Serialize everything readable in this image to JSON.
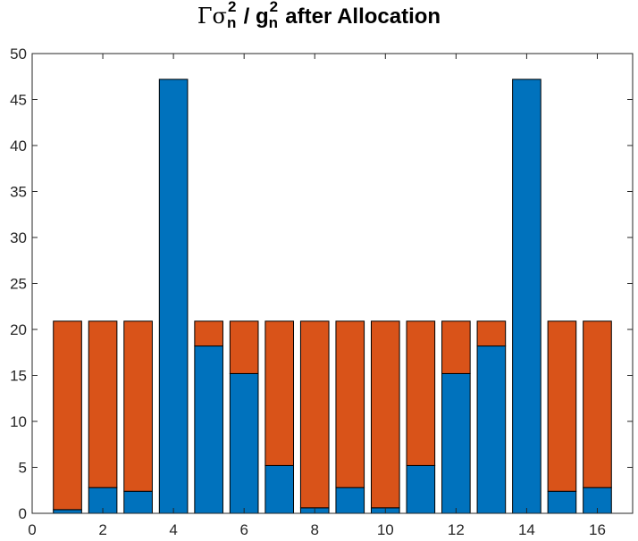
{
  "chart_data": {
    "type": "bar",
    "stacked": true,
    "title": {
      "prefix": "Γσ",
      "sup": "2",
      "sub": "n",
      "mid": " / g",
      "sup2": "2",
      "sub2": "n",
      "suffix": " after Allocation"
    },
    "categories": [
      1,
      2,
      3,
      4,
      5,
      6,
      7,
      8,
      9,
      10,
      11,
      12,
      13,
      14,
      15,
      16
    ],
    "series": [
      {
        "color": "#0072BD",
        "values": [
          0.4,
          2.8,
          2.4,
          47.2,
          18.2,
          15.2,
          5.2,
          0.6,
          2.8,
          0.6,
          5.2,
          15.2,
          18.2,
          47.2,
          2.4,
          2.8
        ]
      },
      {
        "color": "#D95319",
        "values": [
          20.5,
          18.1,
          18.5,
          0,
          2.7,
          5.7,
          15.7,
          20.3,
          18.1,
          20.3,
          15.7,
          5.7,
          2.7,
          0,
          18.5,
          18.1
        ]
      }
    ],
    "xlim": [
      0,
      17
    ],
    "ylim": [
      0,
      50
    ],
    "xticks": [
      0,
      2,
      4,
      6,
      8,
      10,
      12,
      14,
      16
    ],
    "yticks": [
      0,
      5,
      10,
      15,
      20,
      25,
      30,
      35,
      40,
      45,
      50
    ],
    "grid": false,
    "legend": "none",
    "bar_edge_color": "#000000",
    "axis_color": "#262626"
  }
}
